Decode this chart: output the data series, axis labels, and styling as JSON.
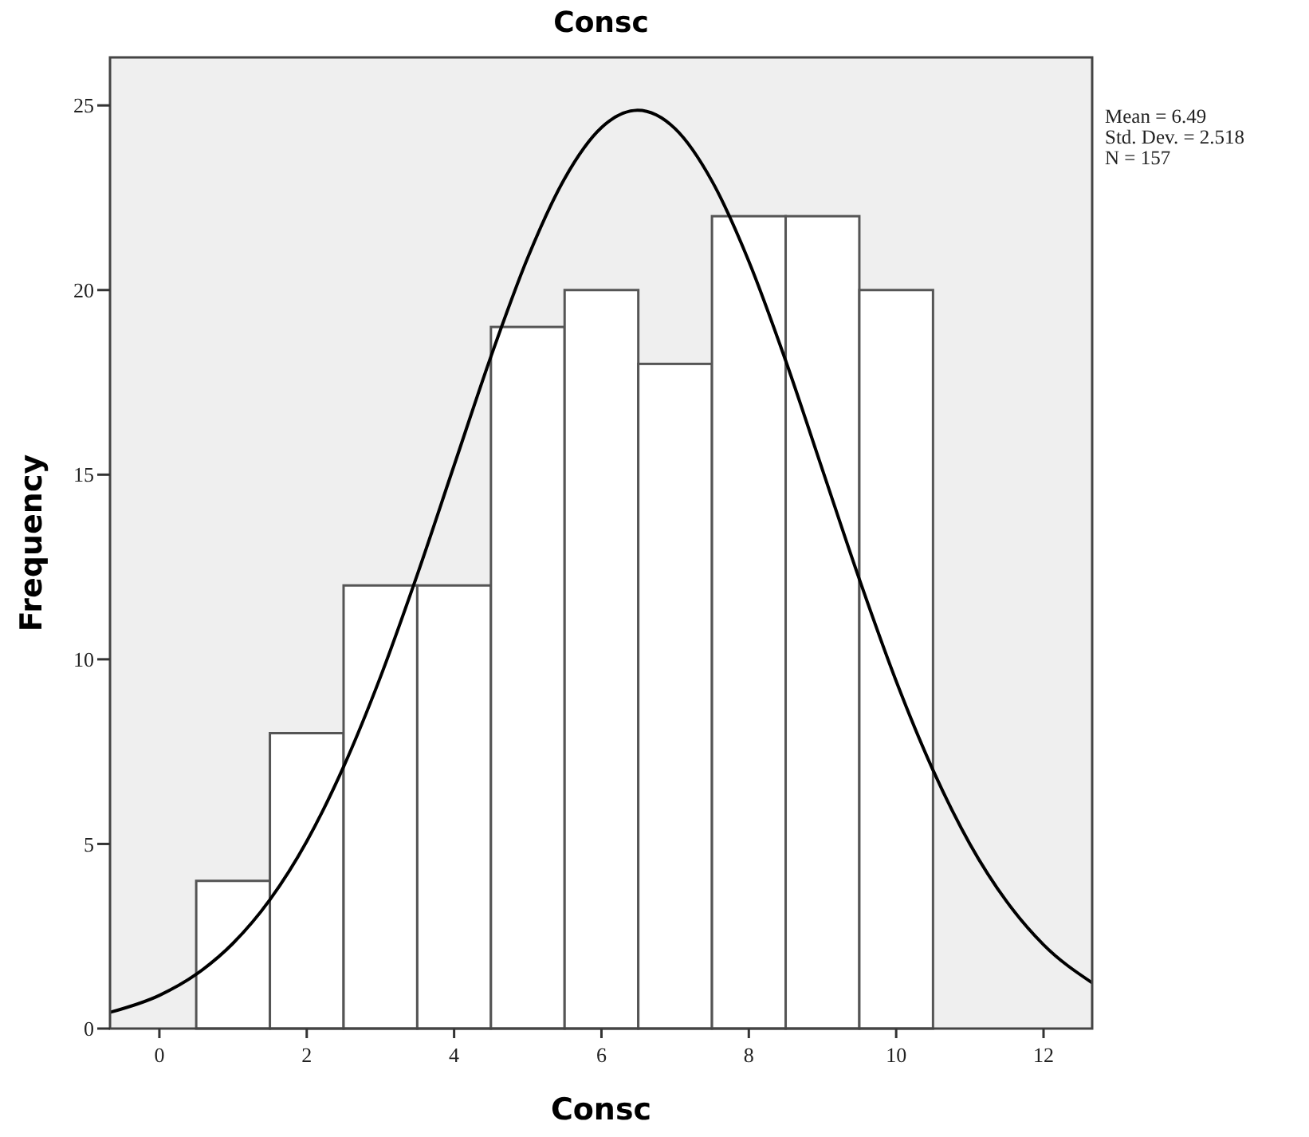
{
  "chart_data": {
    "type": "histogram",
    "title": "Consc",
    "xlabel": "Consc",
    "ylabel": "Frequency",
    "bins": [
      0.5,
      1.5,
      2.5,
      3.5,
      4.5,
      5.5,
      6.5,
      7.5,
      8.5,
      9.5,
      10.5
    ],
    "values": [
      4,
      8,
      12,
      12,
      19,
      20,
      18,
      22,
      22,
      20
    ],
    "color": "#ffffff",
    "series": [
      {
        "type": "line",
        "color": "#000000",
        "x": [
          -0.67,
          0,
          0.5,
          1,
          1.5,
          2,
          2.5,
          3,
          3.5,
          4,
          4.5,
          5,
          5.5,
          6,
          6.49,
          7,
          7.5,
          8,
          8.5,
          9,
          9.5,
          10,
          10.5,
          11,
          11.5,
          12,
          12.66
        ],
        "values": [
          0.44,
          0.9,
          1.47,
          2.31,
          3.49,
          5.07,
          7.09,
          9.52,
          12.29,
          15.25,
          18.2,
          20.88,
          23.02,
          24.4,
          24.87,
          24.37,
          22.95,
          20.78,
          18.09,
          15.13,
          12.17,
          9.41,
          7.0,
          5.0,
          3.44,
          2.27,
          1.24
        ]
      }
    ],
    "xlim": [
      -0.67,
      12.66
    ],
    "ylim": [
      0,
      26.3
    ],
    "xticks": [
      0,
      2,
      4,
      6,
      8,
      10,
      12
    ],
    "yticks": [
      0,
      5,
      10,
      15,
      20,
      25
    ],
    "annotations": [
      "Mean = 6.49",
      "Std. Dev. = 2.518",
      "N = 157"
    ],
    "grid": false,
    "marker": "none",
    "line_style": "solid"
  }
}
